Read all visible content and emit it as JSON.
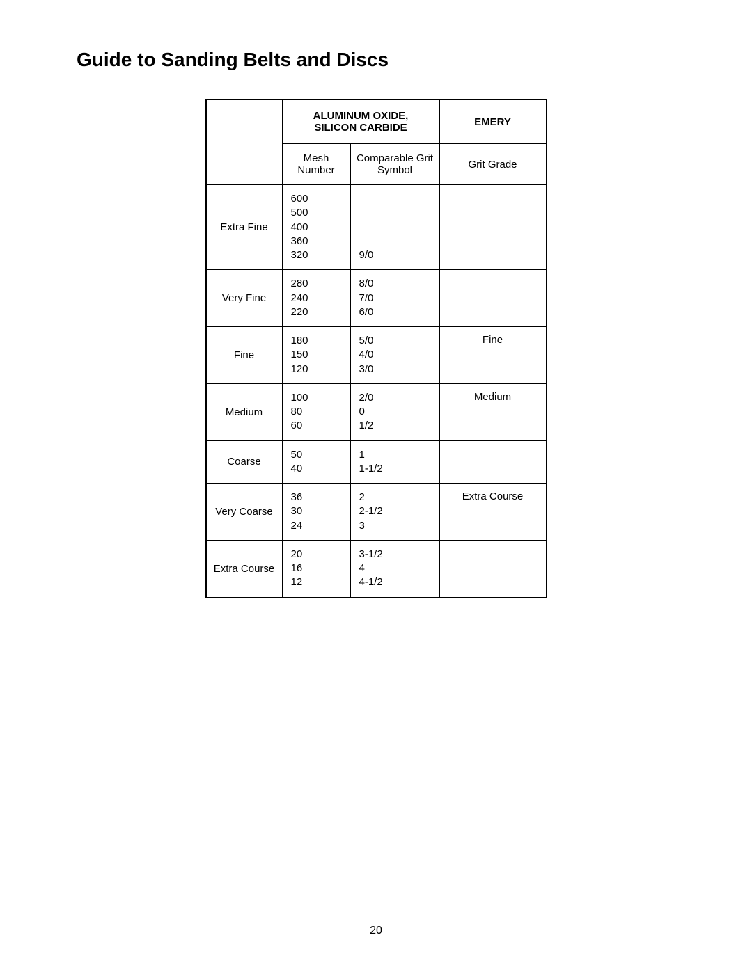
{
  "title": "Guide to Sanding Belts and Discs",
  "page_number": "20",
  "table": {
    "header_aluminum": "Aluminum Oxide,\nSilicon Carbide",
    "header_emery": "Emery",
    "sub_mesh": "Mesh Number",
    "sub_symbol": "Comparable Grit Symbol",
    "sub_grit": "Grit Grade",
    "rows": [
      {
        "grade": "Extra Fine",
        "mesh": [
          "600",
          "500",
          "400",
          "360",
          "320"
        ],
        "symbol": [
          "",
          "",
          "",
          "",
          "9/0"
        ],
        "emery": ""
      },
      {
        "grade": "Very Fine",
        "mesh": [
          "280",
          "240",
          "220"
        ],
        "symbol": [
          "8/0",
          "7/0",
          "6/0"
        ],
        "emery": ""
      },
      {
        "grade": "Fine",
        "mesh": [
          "180",
          "150",
          "120"
        ],
        "symbol": [
          "5/0",
          "4/0",
          "3/0"
        ],
        "emery": "Fine"
      },
      {
        "grade": "Medium",
        "mesh": [
          "100",
          "80",
          "60"
        ],
        "symbol": [
          "2/0",
          "0",
          "1/2"
        ],
        "emery": "Medium"
      },
      {
        "grade": "Coarse",
        "mesh": [
          "50",
          "40"
        ],
        "symbol": [
          "1",
          "1-1/2"
        ],
        "emery": ""
      },
      {
        "grade": "Very Coarse",
        "mesh": [
          "36",
          "30",
          "24"
        ],
        "symbol": [
          "2",
          "2-1/2",
          "3"
        ],
        "emery": "Extra Course"
      },
      {
        "grade": "Extra Course",
        "mesh": [
          "20",
          "16",
          "12"
        ],
        "symbol": [
          "3-1/2",
          "4",
          "4-1/2"
        ],
        "emery": ""
      }
    ]
  }
}
